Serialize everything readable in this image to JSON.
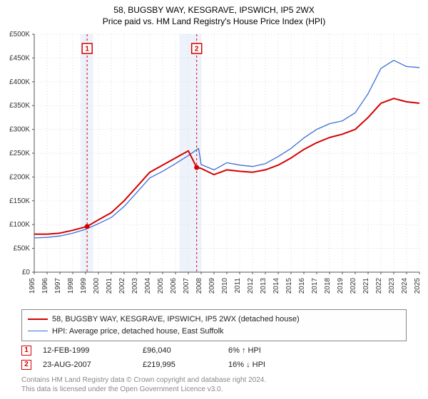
{
  "title_line1": "58, BUGSBY WAY, KESGRAVE, IPSWICH, IP5 2WX",
  "title_line2": "Price paid vs. HM Land Registry's House Price Index (HPI)",
  "chart": {
    "type": "line",
    "background_color": "#ffffff",
    "grid_color": "#cccccc",
    "grid_dash": "1,3",
    "axis_color": "#555555",
    "y_axis": {
      "min": 0,
      "max": 500000,
      "tick_step": 50000,
      "tick_labels": [
        "£0",
        "£50K",
        "£100K",
        "£150K",
        "£200K",
        "£250K",
        "£300K",
        "£350K",
        "£400K",
        "£450K",
        "£500K"
      ],
      "label_fontsize": 10,
      "label_color": "#333333"
    },
    "x_axis": {
      "min": 1995,
      "max": 2025,
      "ticks": [
        1995,
        1996,
        1997,
        1998,
        1999,
        2000,
        2001,
        2002,
        2003,
        2004,
        2005,
        2006,
        2007,
        2008,
        2009,
        2010,
        2011,
        2012,
        2013,
        2014,
        2015,
        2016,
        2017,
        2018,
        2019,
        2020,
        2021,
        2022,
        2023,
        2024,
        2025
      ],
      "label_fontsize": 10,
      "label_color": "#333333",
      "label_rotation": -90
    },
    "shade_bands": [
      {
        "from": 1998.6,
        "to": 1999.6,
        "color": "#eef3fb"
      },
      {
        "from": 2006.3,
        "to": 2008.0,
        "color": "#eef3fb"
      }
    ],
    "series": [
      {
        "name": "58, BUGSBY WAY, KESGRAVE, IPSWICH, IP5 2WX (detached house)",
        "color": "#d40000",
        "width": 2,
        "points": [
          [
            1995,
            80000
          ],
          [
            1996,
            80000
          ],
          [
            1997,
            82000
          ],
          [
            1998,
            88000
          ],
          [
            1999.12,
            96040
          ],
          [
            2000,
            110000
          ],
          [
            2001,
            125000
          ],
          [
            2002,
            150000
          ],
          [
            2003,
            180000
          ],
          [
            2004,
            210000
          ],
          [
            2005,
            225000
          ],
          [
            2006,
            240000
          ],
          [
            2007,
            255000
          ],
          [
            2007.65,
            219995
          ],
          [
            2008,
            218000
          ],
          [
            2009,
            205000
          ],
          [
            2010,
            215000
          ],
          [
            2011,
            212000
          ],
          [
            2012,
            210000
          ],
          [
            2013,
            215000
          ],
          [
            2014,
            225000
          ],
          [
            2015,
            240000
          ],
          [
            2016,
            258000
          ],
          [
            2017,
            272000
          ],
          [
            2018,
            283000
          ],
          [
            2019,
            290000
          ],
          [
            2020,
            300000
          ],
          [
            2021,
            325000
          ],
          [
            2022,
            355000
          ],
          [
            2023,
            365000
          ],
          [
            2024,
            358000
          ],
          [
            2025,
            355000
          ]
        ]
      },
      {
        "name": "HPI: Average price, detached house, East Suffolk",
        "color": "#3a6fd8",
        "width": 1.3,
        "points": [
          [
            1995,
            72000
          ],
          [
            1996,
            73000
          ],
          [
            1997,
            76000
          ],
          [
            1998,
            82000
          ],
          [
            1999,
            90000
          ],
          [
            2000,
            102000
          ],
          [
            2001,
            115000
          ],
          [
            2002,
            138000
          ],
          [
            2003,
            168000
          ],
          [
            2004,
            198000
          ],
          [
            2005,
            212000
          ],
          [
            2006,
            228000
          ],
          [
            2007,
            245000
          ],
          [
            2007.8,
            260000
          ],
          [
            2008,
            226000
          ],
          [
            2009,
            215000
          ],
          [
            2010,
            230000
          ],
          [
            2011,
            225000
          ],
          [
            2012,
            222000
          ],
          [
            2013,
            228000
          ],
          [
            2014,
            243000
          ],
          [
            2015,
            260000
          ],
          [
            2016,
            282000
          ],
          [
            2017,
            300000
          ],
          [
            2018,
            312000
          ],
          [
            2019,
            318000
          ],
          [
            2020,
            335000
          ],
          [
            2021,
            375000
          ],
          [
            2022,
            428000
          ],
          [
            2023,
            445000
          ],
          [
            2024,
            432000
          ],
          [
            2025,
            430000
          ]
        ]
      }
    ],
    "markers": [
      {
        "label": "1",
        "x": 1999.12,
        "y": 96040,
        "line_color": "#d40000",
        "badge_y": 470000
      },
      {
        "label": "2",
        "x": 2007.65,
        "y": 219995,
        "line_color": "#d40000",
        "badge_y": 470000
      }
    ]
  },
  "legend": {
    "series1_color": "#d40000",
    "series1_label": "58, BUGSBY WAY, KESGRAVE, IPSWICH, IP5 2WX (detached house)",
    "series2_color": "#3a6fd8",
    "series2_label": "HPI: Average price, detached house, East Suffolk"
  },
  "sale_rows": [
    {
      "badge": "1",
      "date": "12-FEB-1999",
      "price": "£96,040",
      "delta": "6% ↑ HPI"
    },
    {
      "badge": "2",
      "date": "23-AUG-2007",
      "price": "£219,995",
      "delta": "16% ↓ HPI"
    }
  ],
  "attribution_line1": "Contains HM Land Registry data © Crown copyright and database right 2024.",
  "attribution_line2": "This data is licensed under the Open Government Licence v3.0."
}
